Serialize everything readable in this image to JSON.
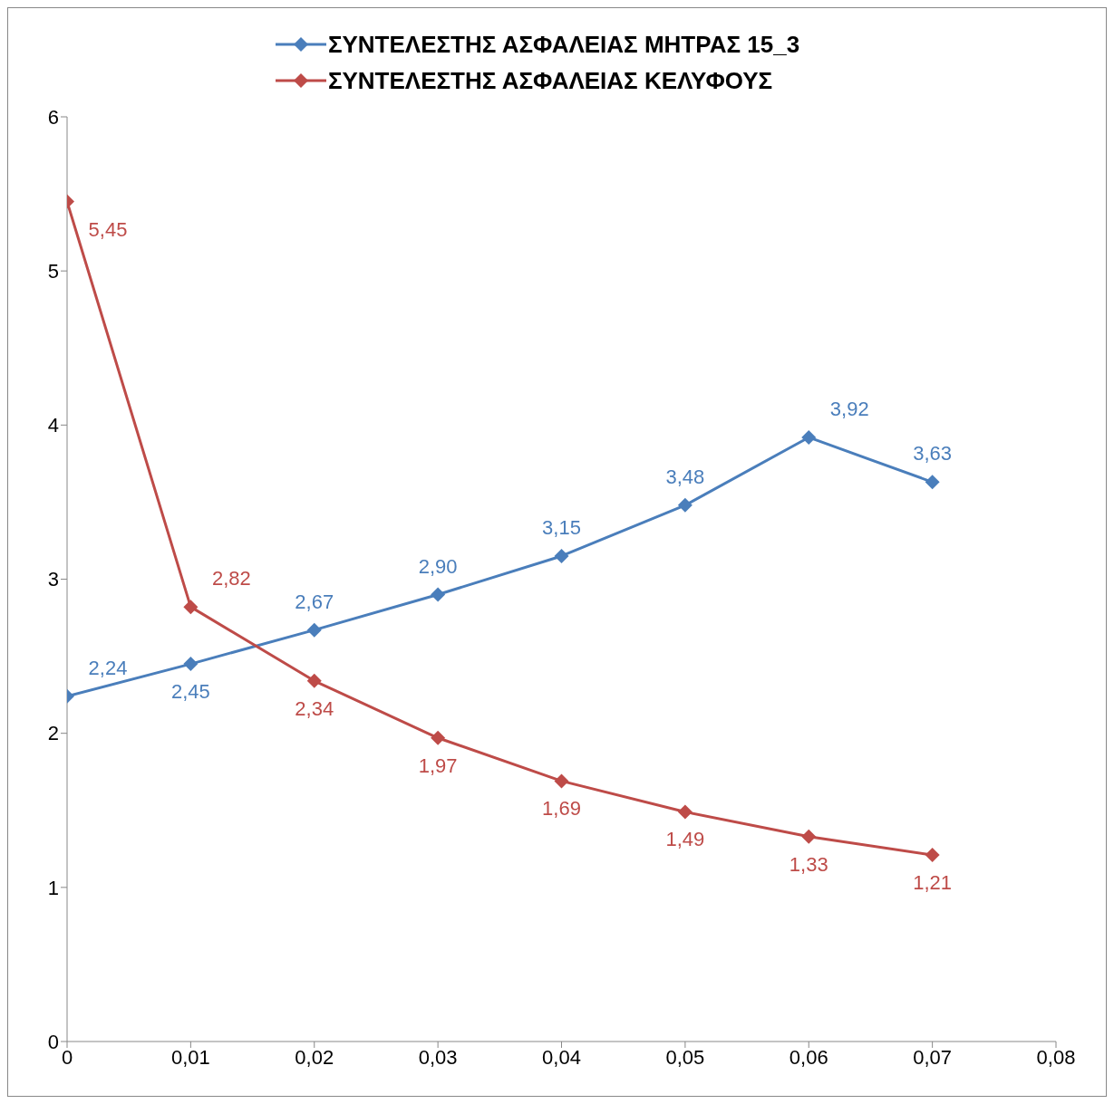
{
  "chart_data": {
    "type": "line",
    "x": [
      0,
      0.01,
      0.02,
      0.03,
      0.04,
      0.05,
      0.06,
      0.07
    ],
    "series": [
      {
        "name": "ΣΥΝΤΕΛΕΣΤΗΣ ΑΣΦΑΛΕΙΑΣ ΜΗΤΡΑΣ 15_3",
        "color": "#4a7ebb",
        "values": [
          2.24,
          2.45,
          2.67,
          2.9,
          3.15,
          3.48,
          3.92,
          3.63
        ],
        "value_labels": [
          "2,24",
          "2,45",
          "2,67",
          "2,90",
          "3,15",
          "3,48",
          "3,92",
          "3,63"
        ]
      },
      {
        "name": "ΣΥΝΤΕΛΕΣΤΗΣ ΑΣΦΑΛΕΙΑΣ ΚΕΛΥΦΟΥΣ",
        "color": "#be4b48",
        "values": [
          5.45,
          2.82,
          2.34,
          1.97,
          1.69,
          1.49,
          1.33,
          1.21
        ],
        "value_labels": [
          "5,45",
          "2,82",
          "2,34",
          "1,97",
          "1,69",
          "1,49",
          "1,33",
          "1,21"
        ]
      }
    ],
    "xlim": [
      0,
      0.08
    ],
    "xticks": [
      0,
      {
        "value": 0.01,
        "label": "0,01"
      },
      {
        "value": 0.02,
        "label": "0,02"
      },
      {
        "value": 0.03,
        "label": "0,03"
      },
      {
        "value": 0.04,
        "label": "0,04"
      },
      {
        "value": 0.05,
        "label": "0,05"
      },
      {
        "value": 0.06,
        "label": "0,06"
      },
      {
        "value": 0.07,
        "label": "0,07"
      },
      {
        "value": 0.08,
        "label": "0,08"
      }
    ],
    "ylim": [
      0,
      6
    ],
    "yticks": [
      0,
      1,
      2,
      3,
      4,
      5,
      6
    ],
    "grid": false,
    "legend": "top",
    "marker": "diamond",
    "line_style": "solid"
  }
}
